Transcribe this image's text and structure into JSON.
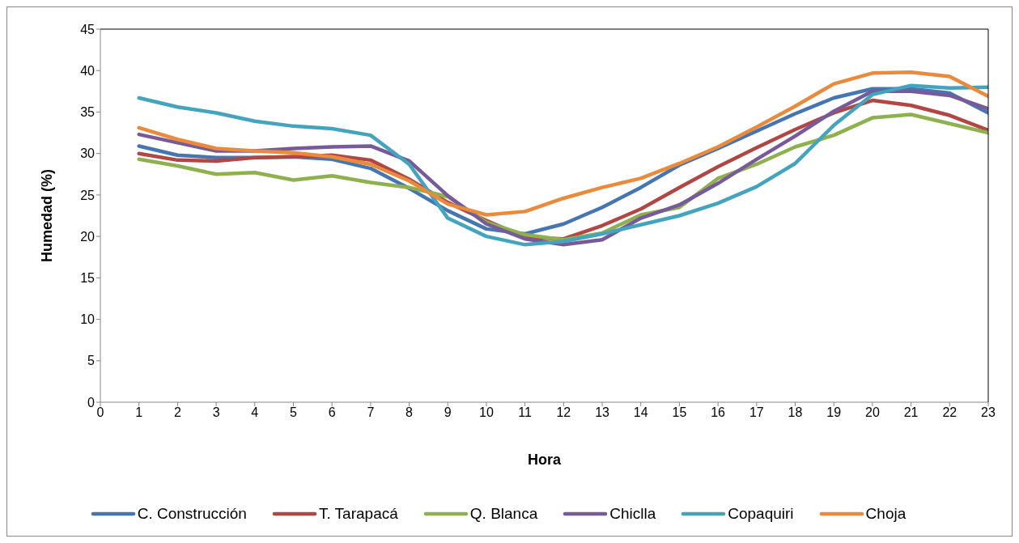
{
  "chart_data": {
    "type": "line",
    "xlabel": "Hora",
    "ylabel": "Humedad (%)",
    "x": [
      1,
      2,
      3,
      4,
      5,
      6,
      7,
      8,
      9,
      10,
      11,
      12,
      13,
      14,
      15,
      16,
      17,
      18,
      19,
      20,
      21,
      22,
      23
    ],
    "xlim": [
      0,
      23
    ],
    "xticks": [
      0,
      1,
      2,
      3,
      4,
      5,
      6,
      7,
      8,
      9,
      10,
      11,
      12,
      13,
      14,
      15,
      16,
      17,
      18,
      19,
      20,
      21,
      22,
      23
    ],
    "ylim": [
      0,
      45
    ],
    "yticks": [
      0,
      5,
      10,
      15,
      20,
      25,
      30,
      35,
      40,
      45
    ],
    "grid": false,
    "legend": "bottom",
    "marker": "none",
    "line_style": "solid",
    "series": [
      {
        "name": "C. Construcción",
        "color": "#4676b2",
        "values": [
          30.9,
          29.8,
          29.5,
          29.5,
          29.6,
          29.3,
          28.2,
          25.8,
          23.1,
          20.9,
          20.3,
          21.5,
          23.5,
          25.9,
          28.6,
          30.6,
          32.7,
          34.8,
          36.7,
          37.8,
          37.8,
          37.3,
          34.9
        ]
      },
      {
        "name": "T. Tarapacá",
        "color": "#b04744",
        "values": [
          30.0,
          29.2,
          29.1,
          29.5,
          29.6,
          29.8,
          29.2,
          26.9,
          24.1,
          21.9,
          19.9,
          19.7,
          21.3,
          23.3,
          25.9,
          28.4,
          30.7,
          32.9,
          34.9,
          36.4,
          35.8,
          34.6,
          32.8
        ]
      },
      {
        "name": "Q. Blanca",
        "color": "#8fb04f",
        "values": [
          29.3,
          28.5,
          27.5,
          27.7,
          26.8,
          27.3,
          26.5,
          25.9,
          24.8,
          21.7,
          20.2,
          19.6,
          20.4,
          22.6,
          23.5,
          27.0,
          28.7,
          30.8,
          32.2,
          34.3,
          34.7,
          33.6,
          32.5
        ]
      },
      {
        "name": "Chiclla",
        "color": "#775a99",
        "values": [
          32.3,
          31.3,
          30.3,
          30.3,
          30.6,
          30.8,
          30.9,
          29.1,
          24.9,
          21.5,
          19.7,
          19.0,
          19.6,
          22.2,
          23.8,
          26.4,
          29.3,
          32.1,
          35.1,
          37.5,
          37.5,
          37.0,
          35.4
        ]
      },
      {
        "name": "Copaquiri",
        "color": "#44a3bd",
        "values": [
          36.7,
          35.6,
          34.9,
          33.9,
          33.3,
          33.0,
          32.2,
          28.7,
          22.2,
          20.0,
          19.0,
          19.4,
          20.3,
          21.4,
          22.5,
          24.0,
          26.0,
          28.8,
          33.4,
          37.1,
          38.2,
          37.9,
          38.0
        ]
      },
      {
        "name": "Choja",
        "color": "#ea8a3c",
        "values": [
          33.1,
          31.7,
          30.6,
          30.3,
          30.1,
          29.6,
          28.7,
          26.7,
          23.9,
          22.6,
          23.0,
          24.6,
          25.9,
          27.0,
          28.8,
          30.8,
          33.2,
          35.7,
          38.4,
          39.7,
          39.8,
          39.3,
          36.9
        ]
      }
    ]
  }
}
